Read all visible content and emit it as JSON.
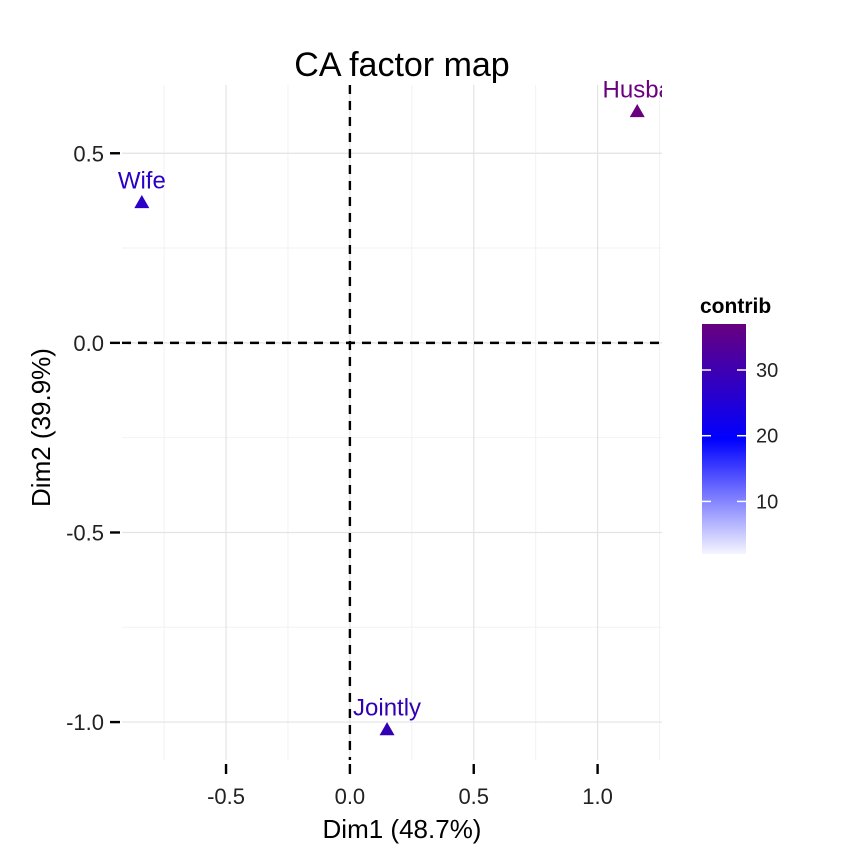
{
  "chart_data": {
    "type": "scatter",
    "title": "CA factor map",
    "xlabel": "Dim1 (48.7%)",
    "ylabel": "Dim2 (39.9%)",
    "xlim": [
      -0.92,
      1.26
    ],
    "ylim": [
      -1.1,
      0.68
    ],
    "x_ticks": [
      -0.5,
      0.0,
      0.5,
      1.0
    ],
    "x_tick_labels": [
      "-0.5",
      "0.0",
      "0.5",
      "1.0"
    ],
    "y_ticks": [
      -1.0,
      -0.5,
      0.0,
      0.5
    ],
    "y_tick_labels": [
      "-1.0",
      "-0.5",
      "0.0",
      "0.5"
    ],
    "grid": true,
    "reference_lines": [
      0,
      0
    ],
    "marker": "triangle",
    "points": [
      {
        "label": "Wife",
        "x": -0.84,
        "y": 0.37,
        "contrib": 30,
        "color": "#2a00c8"
      },
      {
        "label": "Husba",
        "x": 1.16,
        "y": 0.61,
        "contrib": 37,
        "color": "#6a007f"
      },
      {
        "label": "Jointly",
        "x": 0.15,
        "y": -1.02,
        "contrib": 33,
        "color": "#3200b4"
      }
    ],
    "legend": {
      "title": "contrib",
      "position": "right",
      "range": [
        2,
        37
      ],
      "ticks": [
        10,
        20,
        30
      ],
      "tick_labels": [
        "10",
        "20",
        "30"
      ],
      "gradient_colors": [
        "#f5f5ff",
        "#0000ff",
        "#68007e"
      ]
    }
  }
}
